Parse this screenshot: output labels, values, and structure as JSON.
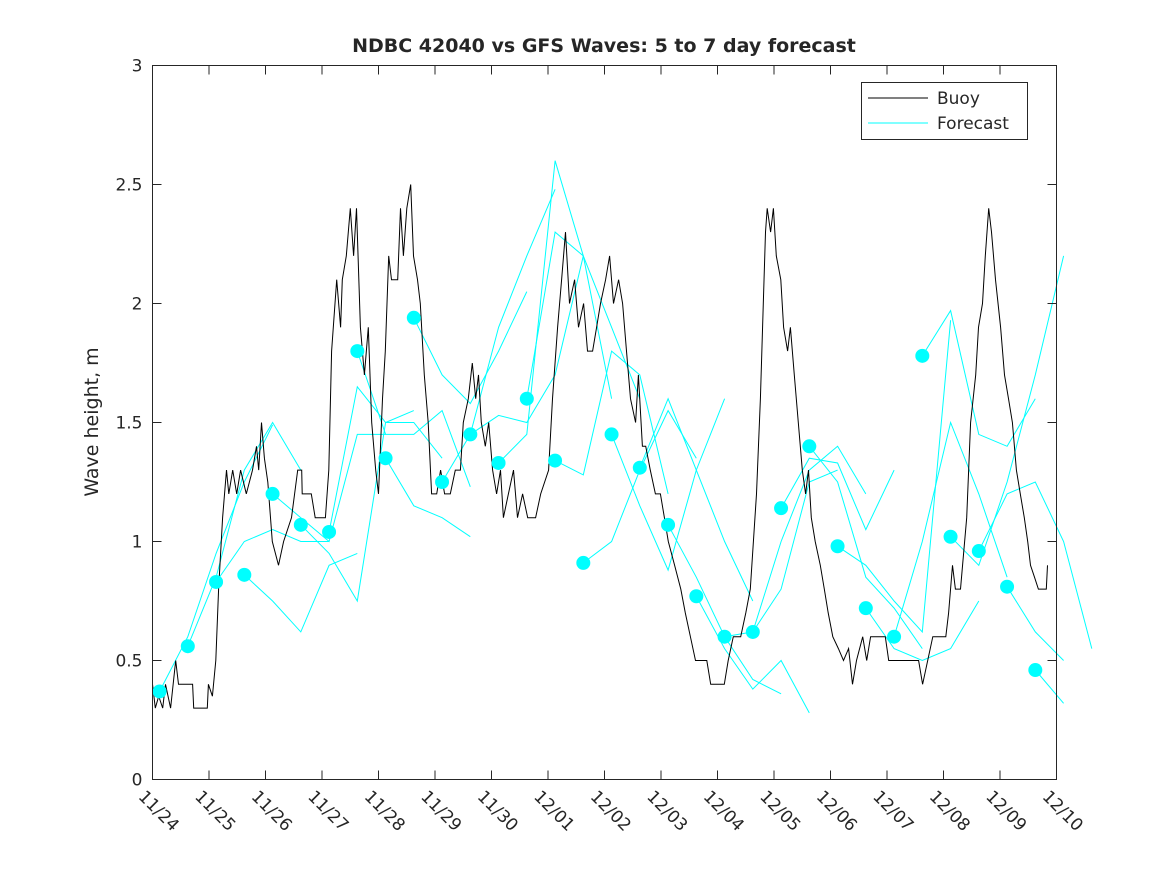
{
  "chart_data": {
    "type": "line",
    "title": "NDBC 42040 vs GFS Waves: 5 to 7 day forecast",
    "xlabel": "",
    "ylabel": "Wave height, m",
    "xlim": [
      0,
      16
    ],
    "ylim": [
      0,
      3
    ],
    "x_unit": "days since 11/24",
    "x_tick_labels": [
      "11/24",
      "11/25",
      "11/26",
      "11/27",
      "11/28",
      "11/29",
      "11/30",
      "12/01",
      "12/02",
      "12/03",
      "12/04",
      "12/05",
      "12/06",
      "12/07",
      "12/08",
      "12/09",
      "12/10"
    ],
    "y_ticks": [
      0,
      0.5,
      1,
      1.5,
      2,
      2.5,
      3
    ],
    "y_tick_labels": [
      "0",
      "0.5",
      "1",
      "1.5",
      "2",
      "2.5",
      "3"
    ],
    "grid": false,
    "legend": {
      "placement": "top-right",
      "entries": [
        "Buoy",
        "Forecast"
      ]
    },
    "colors": {
      "buoy": "#000000",
      "forecast": "#00ffff"
    },
    "buoy": {
      "name": "Buoy",
      "x": [
        0,
        0.05,
        0.11,
        0.18,
        0.23,
        0.32,
        0.41,
        0.46,
        0.71,
        0.73,
        0.97,
        0.99,
        1.06,
        1.12,
        1.17,
        1.24,
        1.31,
        1.35,
        1.42,
        1.49,
        1.56,
        1.66,
        1.77,
        1.84,
        1.88,
        1.93,
        1.98,
        2.04,
        2.12,
        2.23,
        2.32,
        2.46,
        2.57,
        2.64,
        2.65,
        2.81,
        2.88,
        3.06,
        3.12,
        3.17,
        3.26,
        3.33,
        3.36,
        3.43,
        3.5,
        3.56,
        3.61,
        3.68,
        3.75,
        3.82,
        3.88,
        3.95,
        4.0,
        4.07,
        4.12,
        4.18,
        4.23,
        4.34,
        4.39,
        4.44,
        4.5,
        4.57,
        4.62,
        4.69,
        4.74,
        4.81,
        4.88,
        4.94,
        5.03,
        5.1,
        5.17,
        5.27,
        5.36,
        5.45,
        5.5,
        5.59,
        5.66,
        5.72,
        5.77,
        5.82,
        5.89,
        5.95,
        6.02,
        6.09,
        6.16,
        6.21,
        6.3,
        6.39,
        6.46,
        6.55,
        6.64,
        6.78,
        6.87,
        7.01,
        7.08,
        7.17,
        7.24,
        7.31,
        7.38,
        7.47,
        7.54,
        7.63,
        7.7,
        7.79,
        7.86,
        7.93,
        8.02,
        8.09,
        8.16,
        8.25,
        8.32,
        8.39,
        8.46,
        8.55,
        8.6,
        8.67,
        8.73,
        8.81,
        8.9,
        8.99,
        9.06,
        9.13,
        9.24,
        9.35,
        9.43,
        9.52,
        9.61,
        9.7,
        9.81,
        9.88,
        10.12,
        10.19,
        10.28,
        10.41,
        10.5,
        10.58,
        10.69,
        10.76,
        10.81,
        10.85,
        10.88,
        10.94,
        10.99,
        11.04,
        11.12,
        11.17,
        11.24,
        11.29,
        11.36,
        11.43,
        11.5,
        11.56,
        11.61,
        11.66,
        11.73,
        11.82,
        11.89,
        11.96,
        12.04,
        12.14,
        12.23,
        12.32,
        12.39,
        12.46,
        12.57,
        12.64,
        12.71,
        12.97,
        13.03,
        13.42,
        13.56,
        13.63,
        13.72,
        13.81,
        14.04,
        14.09,
        14.16,
        14.21,
        14.3,
        14.41,
        14.48,
        14.57,
        14.62,
        14.69,
        14.74,
        14.8,
        14.85,
        14.92,
        15.01,
        15.08,
        15.15,
        15.22,
        15.29,
        15.36,
        15.43,
        15.49,
        15.54,
        15.61,
        15.68,
        15.82,
        15.84
      ],
      "y": [
        0.4,
        0.3,
        0.35,
        0.3,
        0.4,
        0.3,
        0.5,
        0.4,
        0.4,
        0.3,
        0.3,
        0.4,
        0.35,
        0.5,
        0.8,
        1.1,
        1.3,
        1.2,
        1.3,
        1.2,
        1.3,
        1.2,
        1.3,
        1.4,
        1.3,
        1.5,
        1.35,
        1.25,
        1.0,
        0.9,
        1.0,
        1.1,
        1.3,
        1.3,
        1.2,
        1.2,
        1.1,
        1.1,
        1.3,
        1.8,
        2.1,
        1.9,
        2.1,
        2.2,
        2.4,
        2.2,
        2.4,
        1.9,
        1.7,
        1.9,
        1.5,
        1.3,
        1.2,
        1.6,
        1.8,
        2.2,
        2.1,
        2.1,
        2.4,
        2.2,
        2.4,
        2.5,
        2.2,
        2.1,
        2.0,
        1.7,
        1.5,
        1.2,
        1.2,
        1.3,
        1.2,
        1.2,
        1.3,
        1.3,
        1.5,
        1.6,
        1.75,
        1.6,
        1.7,
        1.5,
        1.4,
        1.5,
        1.3,
        1.2,
        1.3,
        1.1,
        1.2,
        1.3,
        1.1,
        1.2,
        1.1,
        1.1,
        1.2,
        1.3,
        1.6,
        1.9,
        2.1,
        2.3,
        2.0,
        2.1,
        1.9,
        2.0,
        1.8,
        1.8,
        1.9,
        2.0,
        2.1,
        2.2,
        2.0,
        2.1,
        2.0,
        1.8,
        1.6,
        1.5,
        1.7,
        1.4,
        1.4,
        1.3,
        1.2,
        1.2,
        1.1,
        1.0,
        0.9,
        0.8,
        0.7,
        0.6,
        0.5,
        0.5,
        0.5,
        0.4,
        0.4,
        0.5,
        0.6,
        0.6,
        0.7,
        0.8,
        1.2,
        1.6,
        2.0,
        2.3,
        2.4,
        2.3,
        2.4,
        2.2,
        2.1,
        1.9,
        1.8,
        1.9,
        1.7,
        1.5,
        1.3,
        1.2,
        1.3,
        1.1,
        1.0,
        0.9,
        0.8,
        0.7,
        0.6,
        0.55,
        0.5,
        0.55,
        0.4,
        0.5,
        0.6,
        0.5,
        0.6,
        0.6,
        0.5,
        0.5,
        0.5,
        0.4,
        0.5,
        0.6,
        0.6,
        0.7,
        0.9,
        0.8,
        0.8,
        1.1,
        1.5,
        1.7,
        1.9,
        2.0,
        2.2,
        2.4,
        2.3,
        2.1,
        1.9,
        1.7,
        1.6,
        1.5,
        1.3,
        1.2,
        1.1,
        1.0,
        0.9,
        0.85,
        0.8,
        0.8,
        0.9
      ]
    },
    "forecast": {
      "name": "Forecast",
      "step_days": 0.5,
      "segments": [
        {
          "t0": 0.125,
          "values": [
            0.37,
            0.6,
            0.95,
            1.25,
            1.49
          ]
        },
        {
          "t0": 0.625,
          "values": [
            0.56,
            0.85,
            1.3,
            1.5,
            1.3
          ]
        },
        {
          "t0": 1.125,
          "values": [
            0.83,
            1.0,
            1.05,
            1.0,
            1.0
          ]
        },
        {
          "t0": 1.625,
          "values": [
            0.86,
            0.75,
            0.62,
            0.9,
            0.95
          ]
        },
        {
          "t0": 2.125,
          "values": [
            1.2,
            1.1,
            1.0,
            1.45,
            1.45
          ]
        },
        {
          "t0": 2.625,
          "values": [
            1.07,
            0.95,
            0.75,
            1.5,
            1.55
          ]
        },
        {
          "t0": 3.125,
          "values": [
            1.04,
            1.65,
            1.5,
            1.5,
            1.35
          ]
        },
        {
          "t0": 3.625,
          "values": [
            1.8,
            1.45,
            1.45,
            1.55,
            1.23
          ]
        },
        {
          "t0": 4.125,
          "values": [
            1.35,
            1.15,
            1.1,
            1.02
          ]
        },
        {
          "t0": 4.625,
          "values": [
            1.94,
            1.7,
            1.58,
            1.8,
            2.05
          ]
        },
        {
          "t0": 5.125,
          "values": [
            1.25,
            1.45,
            1.9,
            2.2,
            2.48
          ]
        },
        {
          "t0": 5.625,
          "values": [
            1.45,
            1.53,
            1.5,
            1.7,
            2.2
          ]
        },
        {
          "t0": 6.125,
          "values": [
            1.33,
            1.45,
            2.6,
            2.2,
            1.6
          ]
        },
        {
          "t0": 6.625,
          "values": [
            1.6,
            2.3,
            2.2,
            1.9,
            1.6
          ]
        },
        {
          "t0": 7.125,
          "values": [
            1.34,
            1.28,
            1.8,
            1.7,
            1.2
          ]
        },
        {
          "t0": 7.625,
          "values": [
            0.91,
            1.0,
            1.3,
            1.55,
            1.35
          ]
        },
        {
          "t0": 8.125,
          "values": [
            1.45,
            1.15,
            0.88,
            1.3,
            1.6
          ]
        },
        {
          "t0": 8.625,
          "values": [
            1.31,
            1.6,
            1.3,
            1.0,
            0.75
          ]
        },
        {
          "t0": 9.125,
          "values": [
            1.07,
            0.85,
            0.6,
            0.42,
            0.36
          ]
        },
        {
          "t0": 9.625,
          "values": [
            0.77,
            0.55,
            0.38,
            0.5,
            0.28
          ]
        },
        {
          "t0": 10.125,
          "values": [
            0.6,
            0.62,
            0.8,
            1.25,
            1.3
          ]
        },
        {
          "t0": 10.625,
          "values": [
            0.62,
            1.0,
            1.3,
            1.4,
            1.2
          ]
        },
        {
          "t0": 11.125,
          "values": [
            1.14,
            1.35,
            1.33,
            1.05,
            1.3
          ]
        },
        {
          "t0": 11.625,
          "values": [
            1.4,
            1.25,
            0.85,
            0.72,
            0.55
          ]
        },
        {
          "t0": 12.125,
          "values": [
            0.98,
            0.9,
            0.75,
            0.62,
            1.93
          ]
        },
        {
          "t0": 12.625,
          "values": [
            0.72,
            0.55,
            0.5,
            0.55,
            0.75
          ]
        },
        {
          "t0": 13.125,
          "values": [
            0.6,
            1.0,
            1.5,
            1.2,
            0.85
          ]
        },
        {
          "t0": 13.625,
          "values": [
            1.78,
            1.97,
            1.45,
            1.4,
            1.6
          ]
        },
        {
          "t0": 14.125,
          "values": [
            1.02,
            0.9,
            1.25,
            1.7,
            2.2
          ]
        },
        {
          "t0": 14.625,
          "values": [
            0.96,
            1.2,
            1.25,
            1.0,
            0.55
          ]
        },
        {
          "t0": 15.125,
          "values": [
            0.81,
            0.62,
            0.5
          ]
        },
        {
          "t0": 15.625,
          "values": [
            0.46,
            0.32
          ]
        }
      ]
    }
  }
}
